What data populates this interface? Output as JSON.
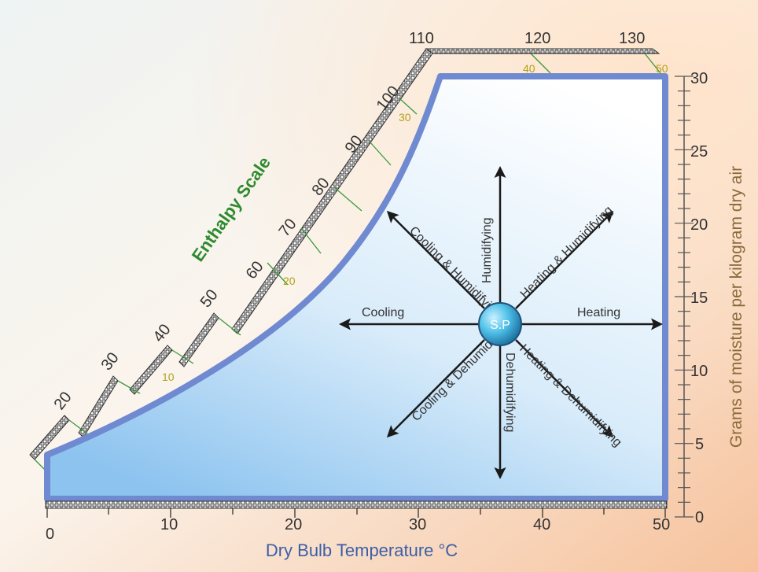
{
  "colors": {
    "chart_fill_top": "#ffffff",
    "chart_fill_bottom": "#a9d2f2",
    "outline": "#6f8ad0",
    "enthalpy_label": "#2f8a2f",
    "enthalpy_ticks": "#b3a01a",
    "moisture_label": "#8a6a3a",
    "axis_label": "#3b5fa8",
    "sp_fill": "#4fc0e8"
  },
  "enthalpy_scale": {
    "title": "Enthalpy Scale",
    "major_labels": [
      "20",
      "30",
      "40",
      "50",
      "60",
      "70",
      "80",
      "90",
      "100",
      "110",
      "120",
      "130"
    ],
    "minor_labels": [
      "10",
      "20",
      "30",
      "40",
      "50"
    ]
  },
  "x_axis": {
    "title": "Dry Bulb Temperature °C",
    "ticks": [
      "0",
      "10",
      "20",
      "30",
      "40",
      "50"
    ]
  },
  "y_axis": {
    "title": "Grams of moisture per kilogram dry air",
    "ticks": [
      "0",
      "5",
      "10",
      "15",
      "20",
      "25",
      "30"
    ]
  },
  "state_point": {
    "label": "S.P"
  },
  "processes": {
    "up": "Humidifying",
    "down": "Dehumidifying",
    "left": "Cooling",
    "right": "Heating",
    "up_left": "Cooling & Humidifying",
    "up_right": "Heating & Humidifying",
    "down_left": "Cooling & Dehumidifying",
    "down_right": "Heating & Dehumidifying"
  }
}
